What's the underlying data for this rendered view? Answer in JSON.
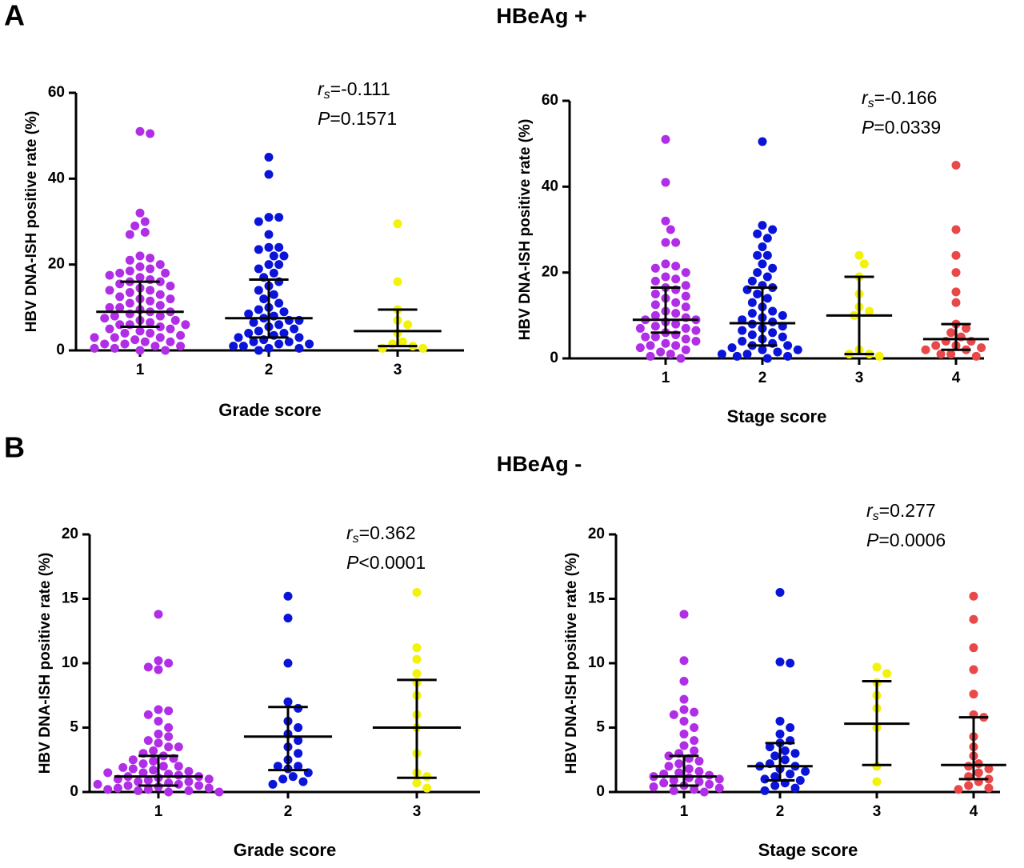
{
  "panels": [
    {
      "label": "A",
      "title": "HBeAg +"
    },
    {
      "label": "B",
      "title": "HBeAg -"
    }
  ],
  "chart_data": [
    {
      "type": "dot",
      "xlabel": "Grade score",
      "ylabel": "HBV DNA-ISH positive rate (%)",
      "categories": [
        "1",
        "2",
        "3"
      ],
      "ylim": [
        0,
        60
      ],
      "yticks": [
        0,
        20,
        40,
        60
      ],
      "stat": {
        "r": "r",
        "r_sub": "s",
        "r_text": "=-0.111",
        "p": "P",
        "p_text": "=0.1571"
      },
      "groups": [
        {
          "color": "#b02ee6",
          "median": 9,
          "q1": 5.5,
          "q3": 16,
          "values": [
            51,
            50.5,
            32,
            30,
            29,
            27.5,
            27,
            22,
            21.5,
            21,
            20,
            19.5,
            19,
            18.5,
            18,
            18,
            17.5,
            17,
            16.5,
            16,
            16,
            15.5,
            15,
            14.5,
            14,
            14,
            13.5,
            13,
            12.5,
            12,
            12,
            11.5,
            11,
            10.5,
            10,
            10,
            9.5,
            9,
            9,
            8.5,
            8,
            8,
            7.5,
            7,
            7,
            6.5,
            6,
            6,
            5.5,
            5,
            5,
            4.5,
            4,
            4,
            3.5,
            3,
            3,
            2.5,
            2,
            2,
            1.5,
            1.5,
            1,
            1,
            0.5,
            0.5,
            0,
            0,
            3,
            6
          ]
        },
        {
          "color": "#0a14d8",
          "median": 7.5,
          "q1": 3,
          "q3": 16.5,
          "values": [
            45,
            41,
            31,
            31,
            30,
            27,
            24,
            24,
            23.5,
            22,
            22,
            20,
            20,
            19,
            18,
            17,
            16,
            15,
            14,
            13,
            12,
            11,
            10,
            9.5,
            9,
            8.5,
            8,
            7.5,
            7,
            7,
            6.5,
            6,
            5.5,
            5,
            4.5,
            4,
            4,
            3.5,
            3,
            3,
            2.5,
            2,
            2,
            1.5,
            1.5,
            1,
            1,
            0.5,
            0.5,
            0
          ]
        },
        {
          "color": "#f2f20a",
          "median": 4.5,
          "q1": 1,
          "q3": 9.5,
          "values": [
            29.5,
            16,
            9.5,
            7,
            6,
            4,
            2,
            1.5,
            1,
            0.5,
            0.5
          ]
        }
      ]
    },
    {
      "type": "dot",
      "xlabel": "Stage score",
      "ylabel": "HBV DNA-ISH positive rate (%)",
      "categories": [
        "1",
        "2",
        "3",
        "4"
      ],
      "ylim": [
        0,
        60
      ],
      "yticks": [
        0,
        20,
        40,
        60
      ],
      "stat": {
        "r": "r",
        "r_sub": "s",
        "r_text": "=-0.166",
        "p": "P",
        "p_text": "=0.0339"
      },
      "groups": [
        {
          "color": "#b02ee6",
          "median": 9,
          "q1": 6,
          "q3": 16.5,
          "values": [
            51,
            41,
            32,
            30,
            27,
            27,
            22,
            21.5,
            21,
            20,
            19,
            18.5,
            18,
            17,
            16.5,
            16,
            15,
            14.5,
            14,
            13,
            12.5,
            12,
            11,
            10.5,
            10,
            9.5,
            9,
            9,
            8.5,
            8,
            7.5,
            7,
            7,
            6.5,
            6,
            5.5,
            5,
            5,
            4.5,
            4,
            3.5,
            3,
            3,
            2.5,
            2,
            1.5,
            1,
            0.5,
            0
          ]
        },
        {
          "color": "#0a14d8",
          "median": 8.2,
          "q1": 3,
          "q3": 16.5,
          "values": [
            50.5,
            31,
            30,
            29,
            28,
            26,
            24,
            24,
            22,
            21,
            20,
            19,
            18,
            17,
            16.5,
            16,
            15,
            14,
            13,
            12,
            11,
            10.5,
            10,
            9.5,
            9,
            8.5,
            8,
            7.5,
            7,
            6.5,
            6,
            5.5,
            5,
            4.5,
            4,
            3.5,
            3,
            3,
            2.5,
            2,
            2,
            1.5,
            1,
            1,
            0.5,
            0.5,
            0
          ]
        },
        {
          "color": "#f2f20a",
          "median": 10,
          "q1": 1,
          "q3": 19,
          "values": [
            24,
            22,
            19,
            15,
            12,
            11,
            10,
            2,
            1,
            1,
            0.5
          ]
        },
        {
          "color": "#e84848",
          "median": 4.5,
          "q1": 2,
          "q3": 8,
          "values": [
            45,
            30,
            24,
            20,
            15.5,
            13,
            8,
            7,
            6,
            5,
            4,
            4,
            3,
            3,
            2.5,
            2,
            2,
            1,
            1,
            0.5
          ]
        }
      ]
    },
    {
      "type": "dot",
      "xlabel": "Grade score",
      "ylabel": "HBV DNA-ISH positive rate (%)",
      "categories": [
        "1",
        "2",
        "3"
      ],
      "ylim": [
        0,
        20
      ],
      "yticks": [
        0,
        5,
        10,
        15,
        20
      ],
      "stat": {
        "r": "r",
        "r_sub": "s",
        "r_text": "=0.362",
        "p": "P",
        "p_text": "<0.0001"
      },
      "groups": [
        {
          "color": "#b02ee6",
          "median": 1.2,
          "q1": 0.5,
          "q3": 2.8,
          "values": [
            13.8,
            10.2,
            10,
            9.7,
            9.5,
            6.4,
            6.3,
            6,
            5.5,
            5,
            4.5,
            4.3,
            4,
            3.8,
            3.5,
            3.2,
            3,
            2.8,
            2.6,
            2.4,
            2.2,
            2,
            2,
            1.8,
            1.7,
            1.6,
            1.5,
            1.4,
            1.3,
            1.2,
            1.2,
            1.1,
            1,
            1,
            0.9,
            0.8,
            0.8,
            0.7,
            0.6,
            0.5,
            0.5,
            0.4,
            0.3,
            0.3,
            0.2,
            0.2,
            0.1,
            0.1,
            0,
            0,
            1.5,
            2.5,
            3.5,
            0.6,
            1.9
          ]
        },
        {
          "color": "#0a14d8",
          "median": 4.3,
          "q1": 1.7,
          "q3": 6.6,
          "values": [
            15.2,
            13.5,
            10,
            7,
            6.5,
            5.5,
            5,
            4.5,
            4,
            3.5,
            3,
            2.5,
            2,
            2,
            1.8,
            1.5,
            1.2,
            1,
            0.8,
            0.6
          ]
        },
        {
          "color": "#f2f20a",
          "median": 5,
          "q1": 1.1,
          "q3": 8.7,
          "values": [
            15.5,
            11.2,
            10.3,
            9.2,
            8.5,
            7.5,
            6,
            5,
            3,
            1.5,
            1.2,
            0.7,
            0.3
          ]
        }
      ]
    },
    {
      "type": "dot",
      "xlabel": "Stage score",
      "ylabel": "HBV DNA-ISH positive rate (%)",
      "categories": [
        "1",
        "2",
        "3",
        "4"
      ],
      "ylim": [
        0,
        20
      ],
      "yticks": [
        0,
        5,
        10,
        15,
        20
      ],
      "stat": {
        "r": "r",
        "r_sub": "s",
        "r_text": "=0.277",
        "p": "P",
        "p_text": "=0.0006"
      },
      "groups": [
        {
          "color": "#b02ee6",
          "median": 1.2,
          "q1": 0.5,
          "q3": 2.8,
          "values": [
            13.8,
            10.2,
            8.6,
            7.2,
            6.4,
            6.2,
            6,
            5.5,
            5,
            4.5,
            4,
            3.6,
            3.2,
            3,
            2.8,
            2.6,
            2.4,
            2.2,
            2,
            1.8,
            1.6,
            1.5,
            1.4,
            1.3,
            1.2,
            1.1,
            1,
            0.9,
            0.8,
            0.7,
            0.6,
            0.5,
            0.4,
            0.3,
            0.2,
            0.1,
            0
          ]
        },
        {
          "color": "#0a14d8",
          "median": 2,
          "q1": 0.9,
          "q3": 3.8,
          "values": [
            15.5,
            10.1,
            10,
            5.5,
            5,
            4.5,
            4,
            3.8,
            3.5,
            3.2,
            3,
            2.8,
            2.5,
            2.2,
            2,
            2,
            1.8,
            1.6,
            1.4,
            1.2,
            1,
            0.9,
            0.7,
            0.5,
            0.3,
            0.1
          ]
        },
        {
          "color": "#f2f20a",
          "median": 5.3,
          "q1": 2.1,
          "q3": 8.6,
          "values": [
            9.7,
            9.2,
            8.5,
            7.5,
            6.5,
            5,
            2,
            0.8
          ]
        },
        {
          "color": "#e84848",
          "median": 2.1,
          "q1": 1,
          "q3": 5.8,
          "values": [
            15.2,
            13.4,
            11.2,
            9.5,
            7.6,
            6,
            5.8,
            4.3,
            3.5,
            2.8,
            2.2,
            2,
            1.8,
            1.5,
            1.2,
            1,
            0.8,
            0.5,
            0.3,
            0.2
          ]
        }
      ]
    }
  ]
}
